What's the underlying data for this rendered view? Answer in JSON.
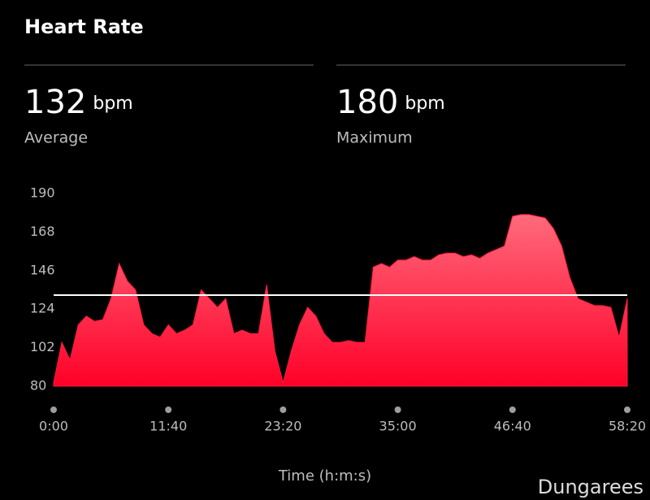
{
  "chart_data": {
    "type": "area",
    "title": "Heart Rate",
    "stats": [
      {
        "value": 132,
        "unit": "bpm",
        "label": "Average"
      },
      {
        "value": 180,
        "unit": "bpm",
        "label": "Maximum"
      }
    ],
    "x": [
      0,
      50,
      100,
      150,
      200,
      250,
      300,
      350,
      400,
      450,
      500,
      550,
      600,
      650,
      700,
      750,
      800,
      850,
      900,
      950,
      1000,
      1050,
      1100,
      1150,
      1200,
      1250,
      1300,
      1350,
      1400,
      1450,
      1500,
      1550,
      1600,
      1650,
      1700,
      1750,
      1800,
      1850,
      1900,
      1950,
      2000,
      2050,
      2100,
      2150,
      2200,
      2250,
      2300,
      2350,
      2400,
      2450,
      2500,
      2550,
      2600,
      2650,
      2700,
      2750,
      2800,
      2850,
      2900,
      2950,
      3000,
      3050,
      3100,
      3150,
      3200,
      3250,
      3300,
      3350,
      3400,
      3450,
      3500
    ],
    "values": [
      82,
      105,
      95,
      115,
      120,
      117,
      118,
      130,
      150,
      140,
      135,
      115,
      110,
      108,
      115,
      110,
      112,
      115,
      135,
      130,
      125,
      130,
      110,
      112,
      110,
      110,
      138,
      100,
      82,
      100,
      115,
      125,
      120,
      110,
      105,
      105,
      106,
      105,
      105,
      148,
      150,
      148,
      152,
      152,
      154,
      152,
      152,
      155,
      156,
      156,
      154,
      155,
      153,
      156,
      158,
      160,
      177,
      178,
      178,
      177,
      176,
      170,
      160,
      142,
      130,
      128,
      126,
      126,
      125,
      108,
      130
    ],
    "color": "#ff1a3c",
    "xlabel": "Time (h:m:s)",
    "xlim": [
      0,
      3500
    ],
    "xticks": [
      {
        "value": 0,
        "label": "0:00"
      },
      {
        "value": 700,
        "label": "11:40"
      },
      {
        "value": 1400,
        "label": "23:20"
      },
      {
        "value": 2100,
        "label": "35:00"
      },
      {
        "value": 2800,
        "label": "46:40"
      },
      {
        "value": 3500,
        "label": "58:20"
      }
    ],
    "ylim": [
      80,
      190
    ],
    "yticks": [
      80,
      102,
      124,
      146,
      168,
      190
    ],
    "watermark": "Dungarees"
  }
}
